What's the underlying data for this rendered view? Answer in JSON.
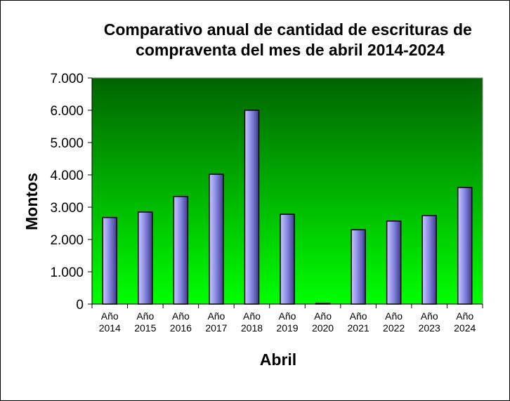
{
  "chart_data": {
    "type": "bar",
    "title_lines": [
      "Comparativo anual de cantidad de escrituras de",
      "compraventa del mes de abril 2014-2024"
    ],
    "xlabel": "Abril",
    "ylabel": "Montos",
    "categories": [
      [
        "Año",
        "2014"
      ],
      [
        "Año",
        "2015"
      ],
      [
        "Año",
        "2016"
      ],
      [
        "Año",
        "2017"
      ],
      [
        "Año",
        "2018"
      ],
      [
        "Año",
        "2019"
      ],
      [
        "Año",
        "2020"
      ],
      [
        "Año",
        "2021"
      ],
      [
        "Año",
        "2022"
      ],
      [
        "Año",
        "2023"
      ],
      [
        "Año",
        "2024"
      ]
    ],
    "values": [
      2680,
      2850,
      3330,
      4020,
      6000,
      2780,
      20,
      2300,
      2570,
      2740,
      3610
    ],
    "ylim": [
      0,
      7000
    ],
    "yticks": [
      0,
      1000,
      2000,
      3000,
      4000,
      5000,
      6000,
      7000
    ],
    "ytick_labels": [
      "0",
      "1.000",
      "2.000",
      "3.000",
      "4.000",
      "5.000",
      "6.000",
      "7.000"
    ],
    "grid": false,
    "legend": "none",
    "colors": {
      "plot_top": "#006400",
      "plot_bottom": "#00ff00",
      "bar_light": "#c8c8ff",
      "bar_mid": "#8c8ce6",
      "bar_dark": "#3c3c8c"
    }
  }
}
